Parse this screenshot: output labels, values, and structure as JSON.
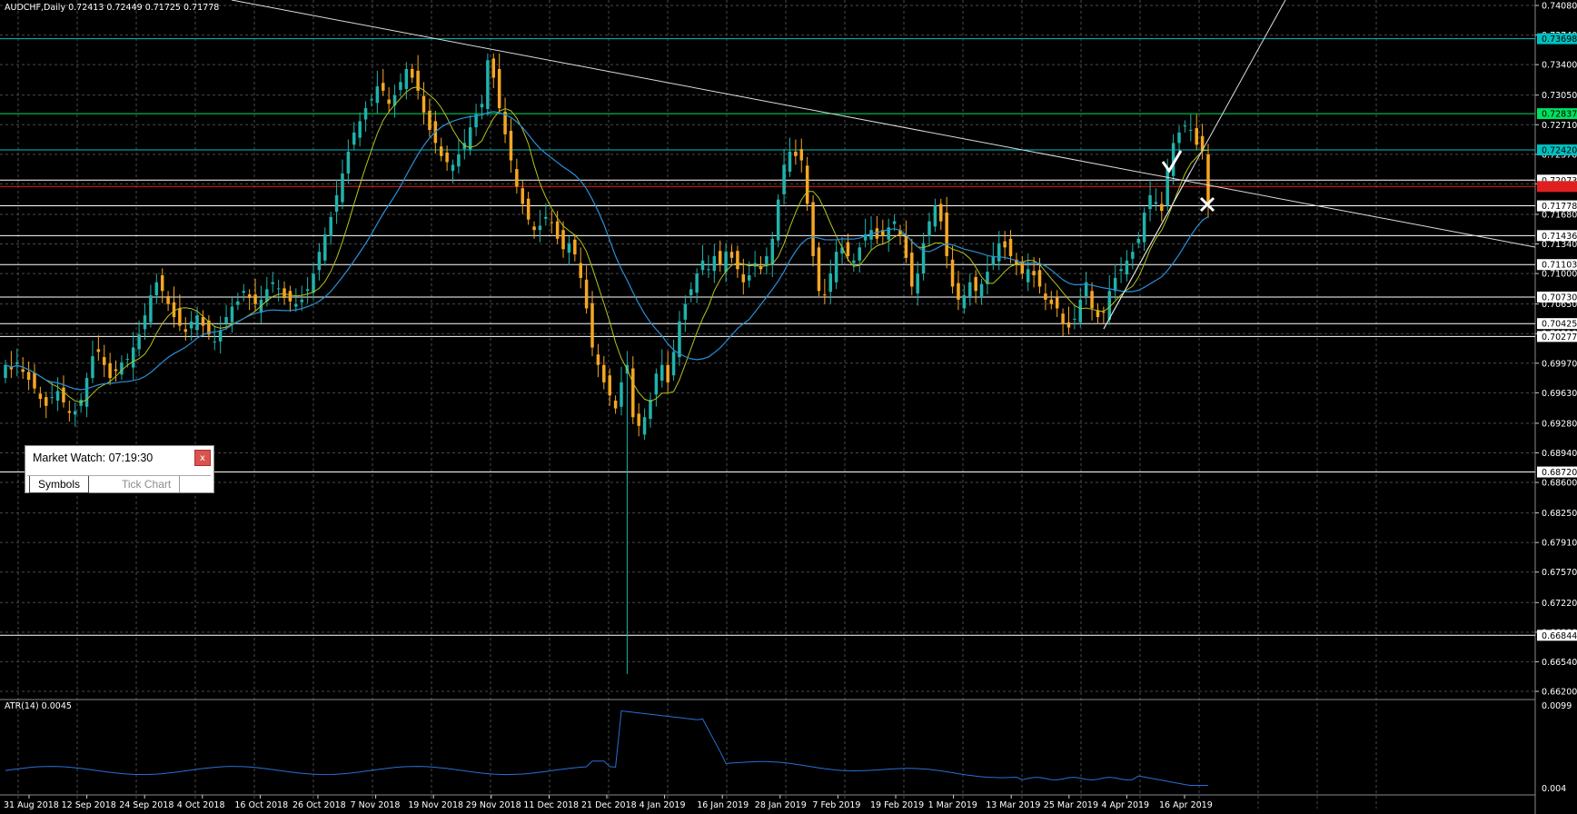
{
  "header": {
    "symbol": "AUDCHF,Daily",
    "ohlc": "0.72413 0.72449 0.71725 0.71778"
  },
  "indicator": {
    "label": "ATR(14) 0.0045",
    "scale_top": "0.0099",
    "scale_bottom": "0.004"
  },
  "market_watch": {
    "title": "Market Watch: 07:19:30",
    "close": "x",
    "tabs": [
      "Symbols",
      "Tick Chart"
    ]
  },
  "chart_data": {
    "type": "candlestick",
    "instrument": "AUDCHF",
    "timeframe": "Daily",
    "y_range": [
      0.662,
      0.7408
    ],
    "price_ticks": [
      "0.74080",
      "0.73740",
      "0.73400",
      "0.73050",
      "0.72710",
      "0.72370",
      "0.72030",
      "0.71680",
      "0.71340",
      "0.71000",
      "0.70650",
      "0.70310",
      "0.69970",
      "0.69630",
      "0.69280",
      "0.68940",
      "0.68600",
      "0.68250",
      "0.67910",
      "0.67570",
      "0.67220",
      "0.66880",
      "0.66540",
      "0.66200"
    ],
    "date_ticks": [
      "31 Aug 2018",
      "12 Sep 2018",
      "24 Sep 2018",
      "4 Oct 2018",
      "16 Oct 2018",
      "26 Oct 2018",
      "7 Nov 2018",
      "19 Nov 2018",
      "29 Nov 2018",
      "11 Dec 2018",
      "21 Dec 2018",
      "4 Jan 2019",
      "16 Jan 2019",
      "28 Jan 2019",
      "7 Feb 2019",
      "19 Feb 2019",
      "1 Mar 2019",
      "13 Mar 2019",
      "25 Mar 2019",
      "4 Apr 2019",
      "16 Apr 2019"
    ],
    "levels": [
      {
        "value": "0.73698",
        "price": 0.73698,
        "color": "#00c0c0"
      },
      {
        "value": "0.72837",
        "price": 0.72837,
        "color": "#00e060"
      },
      {
        "value": "0.72420",
        "price": 0.7242,
        "color": "#00c0c0"
      },
      {
        "value": "0.72073",
        "price": 0.72073,
        "color": "#ffffff"
      },
      {
        "value": "0.71778",
        "price": 0.71778,
        "color": "#ffffff"
      },
      {
        "value": "0.71436",
        "price": 0.71436,
        "color": "#ffffff"
      },
      {
        "value": "0.71103",
        "price": 0.71103,
        "color": "#ffffff"
      },
      {
        "value": "0.70730",
        "price": 0.7073,
        "color": "#ffffff"
      },
      {
        "value": "0.70425",
        "price": 0.70425,
        "color": "#ffffff"
      },
      {
        "value": "0.70277",
        "price": 0.70277,
        "color": "#ffffff"
      },
      {
        "value": "0.68720",
        "price": 0.6872,
        "color": "#ffffff"
      },
      {
        "value": "0.66844",
        "price": 0.66844,
        "color": "#ffffff"
      }
    ],
    "red_level": 0.72,
    "closes": [
      0.6995,
      0.699,
      0.6998,
      0.6987,
      0.6978,
      0.6968,
      0.6956,
      0.6948,
      0.6958,
      0.6965,
      0.6952,
      0.694,
      0.6942,
      0.6955,
      0.698,
      0.7005,
      0.701,
      0.6995,
      0.698,
      0.6988,
      0.6998,
      0.7002,
      0.7015,
      0.703,
      0.7052,
      0.7075,
      0.709,
      0.708,
      0.7065,
      0.705,
      0.704,
      0.7033,
      0.7045,
      0.7052,
      0.704,
      0.703,
      0.7022,
      0.7035,
      0.705,
      0.7062,
      0.7068,
      0.708,
      0.7072,
      0.7065,
      0.707,
      0.7082,
      0.709,
      0.7083,
      0.7072,
      0.7068,
      0.7065,
      0.707,
      0.7082,
      0.71,
      0.7125,
      0.7145,
      0.7165,
      0.719,
      0.7215,
      0.724,
      0.7262,
      0.7275,
      0.729,
      0.73,
      0.7315,
      0.731,
      0.7295,
      0.7305,
      0.732,
      0.7335,
      0.7325,
      0.731,
      0.7285,
      0.7265,
      0.725,
      0.7235,
      0.7228,
      0.7225,
      0.7237,
      0.725,
      0.7268,
      0.7283,
      0.7295,
      0.7345,
      0.7325,
      0.729,
      0.726,
      0.723,
      0.72,
      0.718,
      0.7162,
      0.715,
      0.7155,
      0.7165,
      0.7158,
      0.714,
      0.7128,
      0.7135,
      0.7122,
      0.7095,
      0.706,
      0.7015,
      0.6995,
      0.6975,
      0.696,
      0.6945,
      0.6975,
      0.6995,
      0.6935,
      0.6925,
      0.6935,
      0.6955,
      0.6985,
      0.6995,
      0.6975,
      0.701,
      0.7045,
      0.7065,
      0.7082,
      0.71,
      0.7115,
      0.7105,
      0.712,
      0.711,
      0.7125,
      0.7118,
      0.7105,
      0.709,
      0.7098,
      0.7112,
      0.7105,
      0.712,
      0.714,
      0.7185,
      0.7225,
      0.724,
      0.7235,
      0.723,
      0.718,
      0.712,
      0.708,
      0.7075,
      0.71,
      0.7125,
      0.713,
      0.712,
      0.7115,
      0.713,
      0.7145,
      0.715,
      0.714,
      0.7143,
      0.7153,
      0.716,
      0.7145,
      0.7118,
      0.7085,
      0.71,
      0.7135,
      0.716,
      0.7178,
      0.716,
      0.712,
      0.7085,
      0.707,
      0.7075,
      0.709,
      0.708,
      0.7088,
      0.7102,
      0.712,
      0.7135,
      0.713,
      0.712,
      0.711,
      0.71,
      0.7105,
      0.7098,
      0.7085,
      0.707,
      0.7065,
      0.706,
      0.7042,
      0.7038,
      0.7048,
      0.707,
      0.709,
      0.706,
      0.705,
      0.7055,
      0.708,
      0.7095,
      0.7105,
      0.7115,
      0.7125,
      0.714,
      0.717,
      0.719,
      0.7182,
      0.7172,
      0.722,
      0.725,
      0.7262,
      0.727,
      0.7265,
      0.7248,
      0.7241,
      0.7178
    ],
    "atr_range": [
      0.004,
      0.0099
    ]
  }
}
